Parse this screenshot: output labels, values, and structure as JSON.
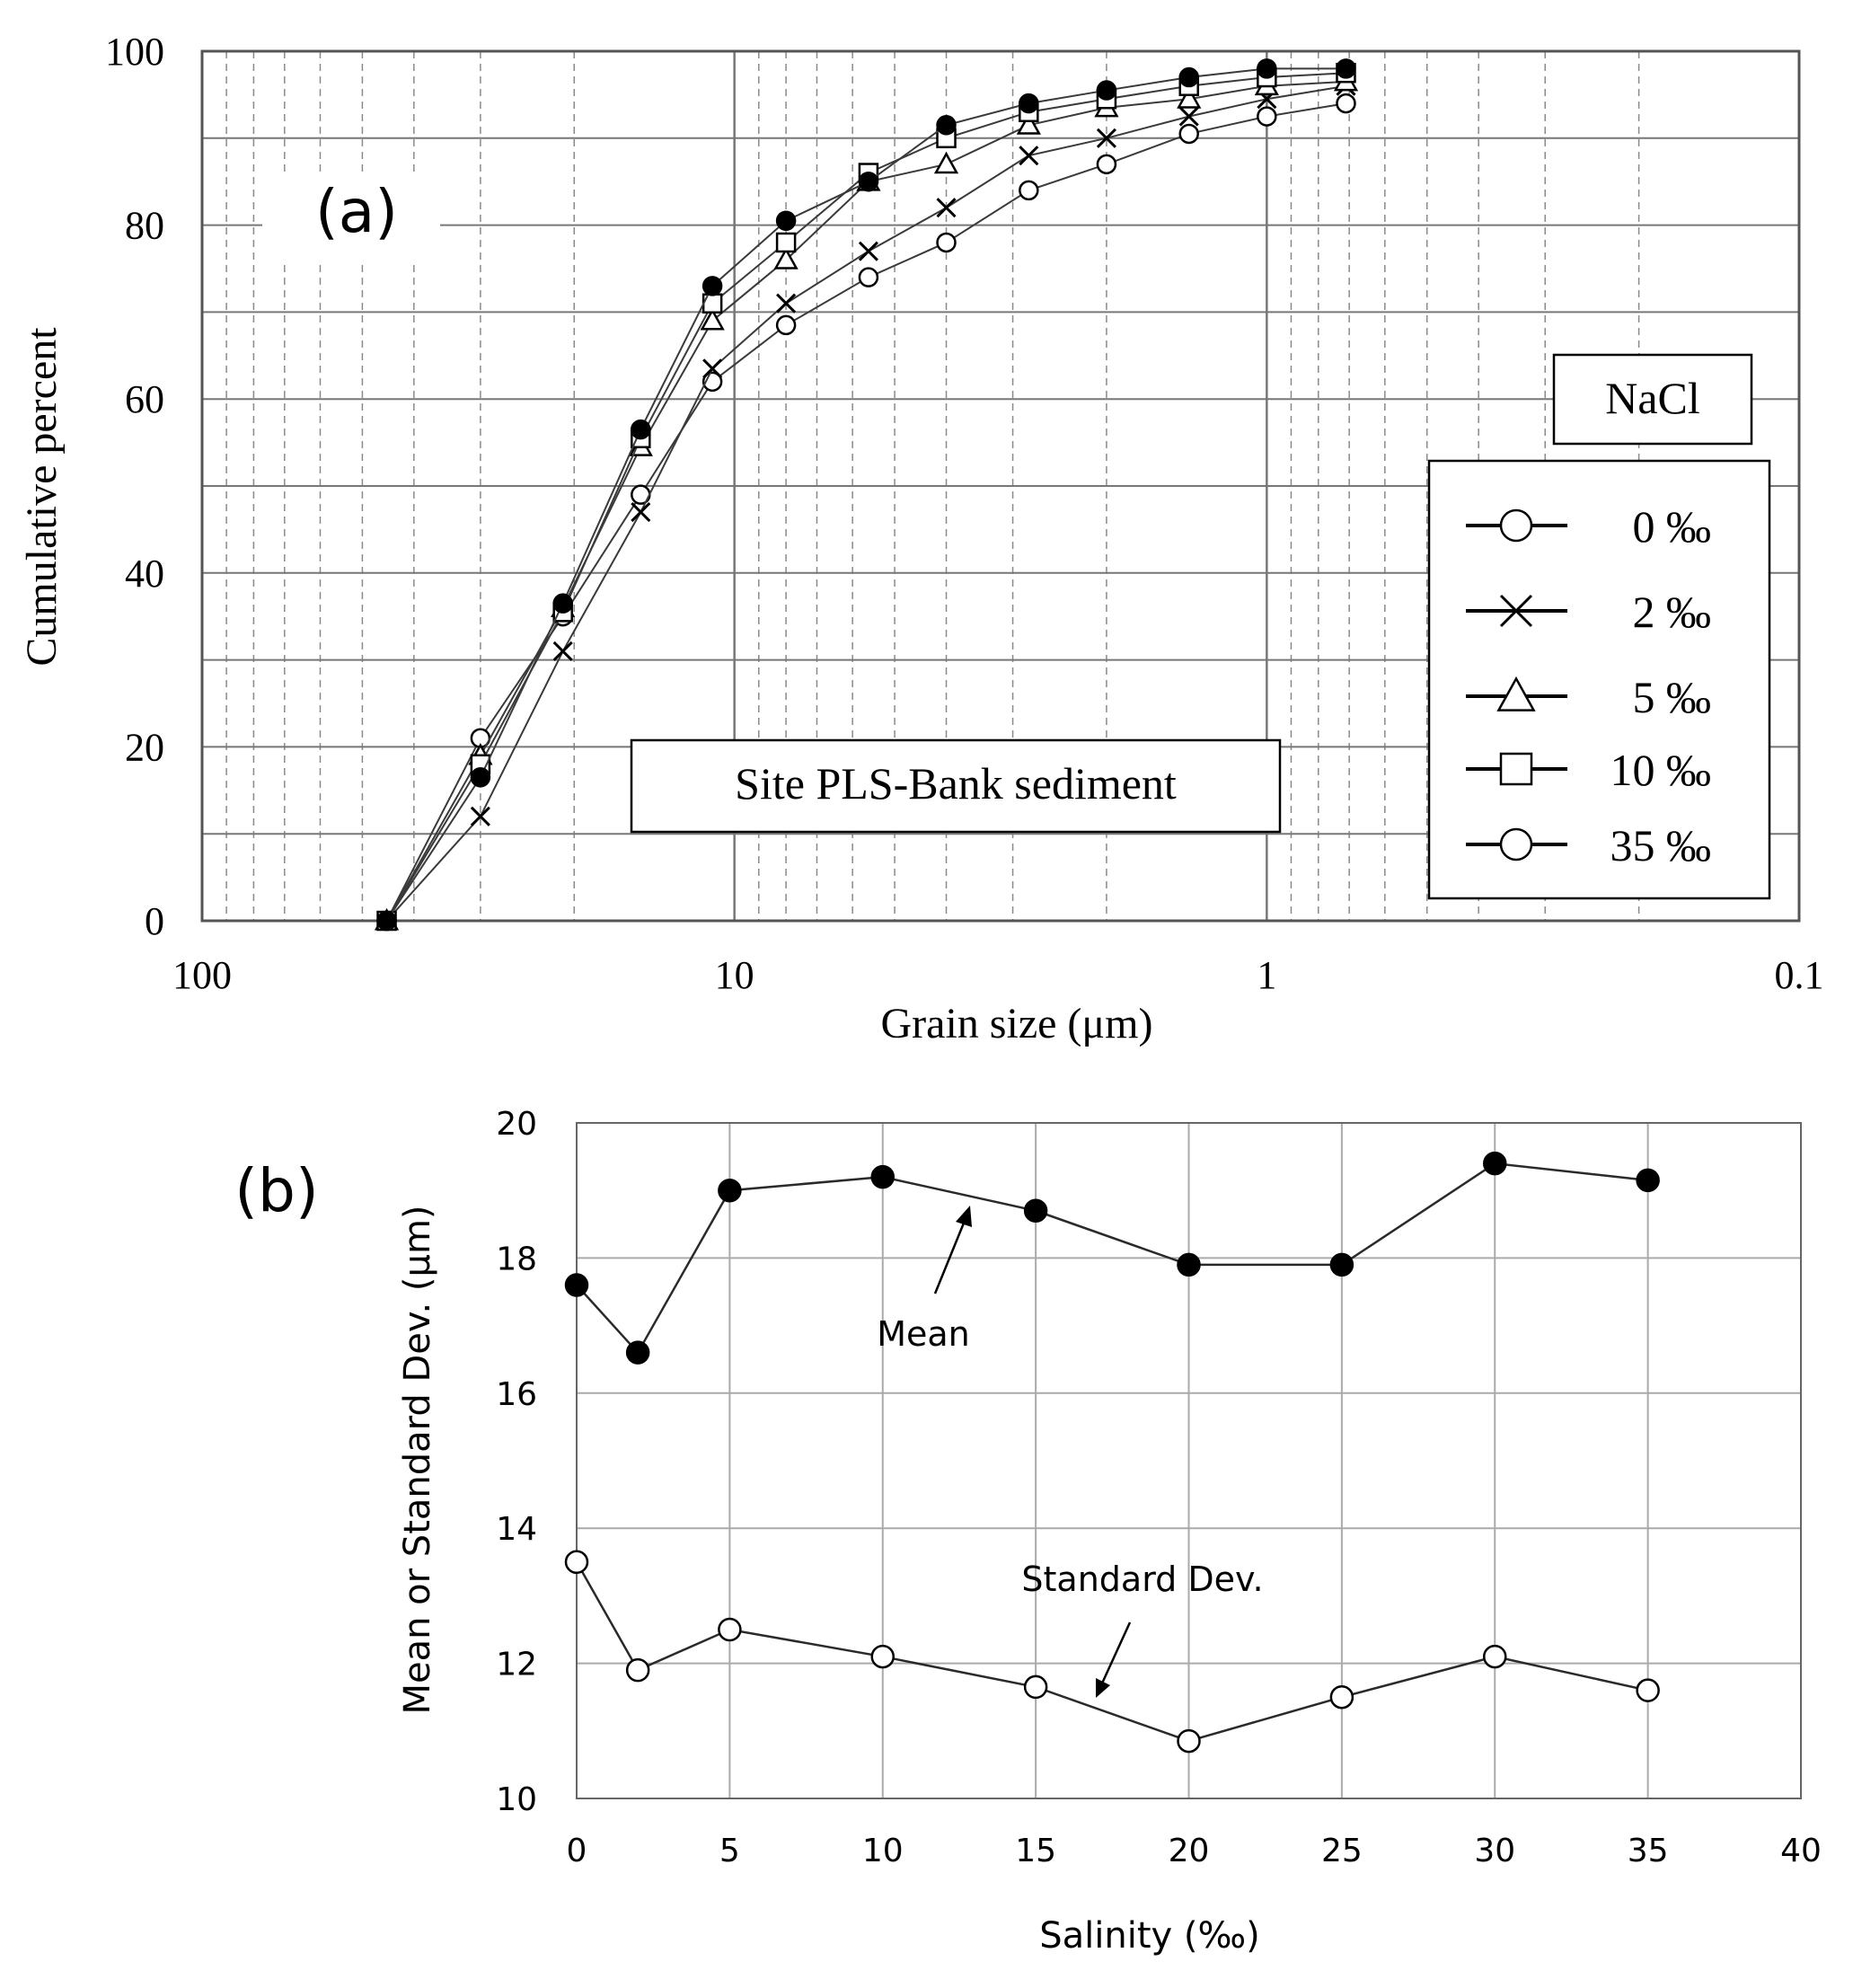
{
  "panel_a": {
    "panel_label": "(a)",
    "site_label": "Site PLS-Bank sediment",
    "legend_title": "NaCl",
    "legend_entries": [
      "0 ‰",
      "2 ‰",
      "5 ‰",
      "10 ‰",
      "35 ‰"
    ]
  },
  "panel_b": {
    "panel_label": "(b)",
    "mean_annotation": "Mean",
    "sd_annotation": "Standard Dev."
  },
  "chart_data": [
    {
      "type": "line",
      "title": "",
      "xlabel": "Grain size (μm)",
      "ylabel": "Cumulative percent",
      "xscale": "log",
      "xreversed": true,
      "xlim": [
        100,
        0.1
      ],
      "ylim": [
        0,
        100
      ],
      "xticks": [
        100,
        10,
        1,
        0.1
      ],
      "xtick_labels": [
        "100",
        "10",
        "1",
        "0.1"
      ],
      "yticks": [
        0,
        20,
        40,
        60,
        80,
        100
      ],
      "ytick_labels": [
        "0",
        "20",
        "40",
        "60",
        "80",
        "100"
      ],
      "grid": true,
      "legend_position": "right",
      "x": [
        45,
        30,
        21,
        15,
        11,
        8,
        5.6,
        4,
        2.8,
        2,
        1.4,
        1,
        0.71
      ],
      "series": [
        {
          "name": "0 ‰",
          "marker": "open-circle",
          "values": [
            0,
            21,
            35,
            49,
            62,
            68.5,
            74,
            78,
            84,
            87,
            90.5,
            92.5,
            94
          ]
        },
        {
          "name": "2 ‰",
          "marker": "x",
          "values": [
            0,
            12,
            31,
            47,
            63.5,
            71,
            77,
            82,
            88,
            90,
            92.5,
            94.5,
            96
          ]
        },
        {
          "name": "5 ‰",
          "marker": "triangle",
          "values": [
            0,
            19,
            36,
            54.5,
            69,
            76,
            85,
            87,
            91.5,
            93.5,
            94.5,
            96,
            96.5
          ]
        },
        {
          "name": "10 ‰",
          "marker": "square",
          "values": [
            0,
            18,
            35.5,
            55.5,
            71,
            78,
            86,
            90,
            93,
            94.5,
            96,
            97,
            97.5
          ]
        },
        {
          "name": "35 ‰",
          "marker": "filled-circle",
          "values": [
            0,
            16.5,
            36.5,
            56.5,
            73,
            80.5,
            85,
            91.5,
            94,
            95.5,
            97,
            98,
            98
          ]
        }
      ]
    },
    {
      "type": "line",
      "title": "",
      "xlabel": "Salinity (‰)",
      "ylabel": "Mean or Standard Dev. (μm)",
      "xlim": [
        0,
        40
      ],
      "ylim": [
        10,
        20
      ],
      "xticks": [
        0,
        5,
        10,
        15,
        20,
        25,
        30,
        35,
        40
      ],
      "xtick_labels": [
        "0",
        "5",
        "10",
        "15",
        "20",
        "25",
        "30",
        "35",
        "40"
      ],
      "yticks": [
        10,
        12,
        14,
        16,
        18,
        20
      ],
      "ytick_labels": [
        "10",
        "12",
        "14",
        "16",
        "18",
        "20"
      ],
      "grid": true,
      "x": [
        0,
        2,
        5,
        10,
        15,
        20,
        25,
        30,
        35
      ],
      "series": [
        {
          "name": "Mean",
          "marker": "filled-circle",
          "values": [
            17.6,
            16.6,
            19.0,
            19.2,
            18.7,
            17.9,
            17.9,
            19.4,
            19.15
          ]
        },
        {
          "name": "Standard Dev.",
          "marker": "open-circle",
          "values": [
            13.5,
            11.9,
            12.5,
            12.1,
            11.65,
            10.85,
            11.5,
            12.1,
            11.6
          ]
        }
      ]
    }
  ]
}
